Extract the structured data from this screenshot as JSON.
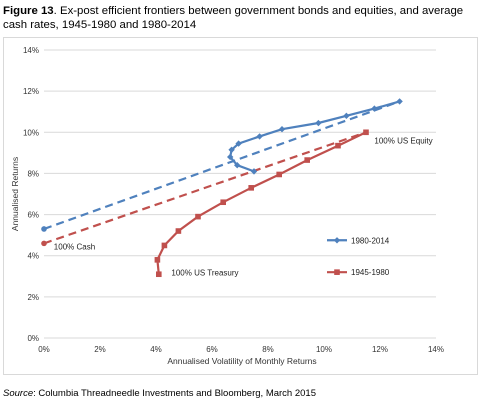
{
  "caption": {
    "lead": "Figure 13",
    "text": ". Ex-post efficient frontiers between government bonds and equities, and average cash rates, 1945-1980 and 1980-2014"
  },
  "source": {
    "label": "Source",
    "text": ": Columbia Threadneedle Investments and Bloomberg, March 2015"
  },
  "chart_data": {
    "type": "line",
    "xlabel": "Annualised Volatility of Monthly Returns",
    "ylabel": "Annualised Returns",
    "xlim": [
      0,
      14
    ],
    "ylim": [
      0,
      14
    ],
    "x_ticks": [
      "0%",
      "2%",
      "4%",
      "6%",
      "8%",
      "10%",
      "12%",
      "14%"
    ],
    "y_ticks": [
      "0%",
      "2%",
      "4%",
      "6%",
      "8%",
      "10%",
      "12%",
      "14%"
    ],
    "grid": "horizontal",
    "legend_position": "right",
    "series": [
      {
        "name": "1980-2014",
        "color": "#4f81bd",
        "marker": "diamond",
        "points": [
          [
            7.5,
            8.1
          ],
          [
            6.9,
            8.4
          ],
          [
            6.65,
            8.8
          ],
          [
            6.7,
            9.15
          ],
          [
            6.95,
            9.45
          ],
          [
            7.7,
            9.8
          ],
          [
            8.5,
            10.15
          ],
          [
            9.8,
            10.45
          ],
          [
            10.8,
            10.8
          ],
          [
            11.8,
            11.15
          ],
          [
            12.7,
            11.5
          ]
        ],
        "cash_line": {
          "from": [
            0,
            5.3
          ],
          "to": [
            12.7,
            11.5
          ]
        }
      },
      {
        "name": "1945-1980",
        "color": "#c0504d",
        "marker": "square",
        "points": [
          [
            4.1,
            3.1
          ],
          [
            4.05,
            3.8
          ],
          [
            4.3,
            4.5
          ],
          [
            4.8,
            5.2
          ],
          [
            5.5,
            5.9
          ],
          [
            6.4,
            6.6
          ],
          [
            7.4,
            7.3
          ],
          [
            8.4,
            7.95
          ],
          [
            9.4,
            8.65
          ],
          [
            10.5,
            9.35
          ],
          [
            11.5,
            10.0
          ]
        ],
        "cash_line": {
          "from": [
            0,
            4.6
          ],
          "to": [
            11.5,
            10.0
          ]
        }
      }
    ],
    "annotations": {
      "cash": "100% Cash",
      "treasury": "100% US Treasury",
      "equity": "100% US Equity"
    }
  }
}
